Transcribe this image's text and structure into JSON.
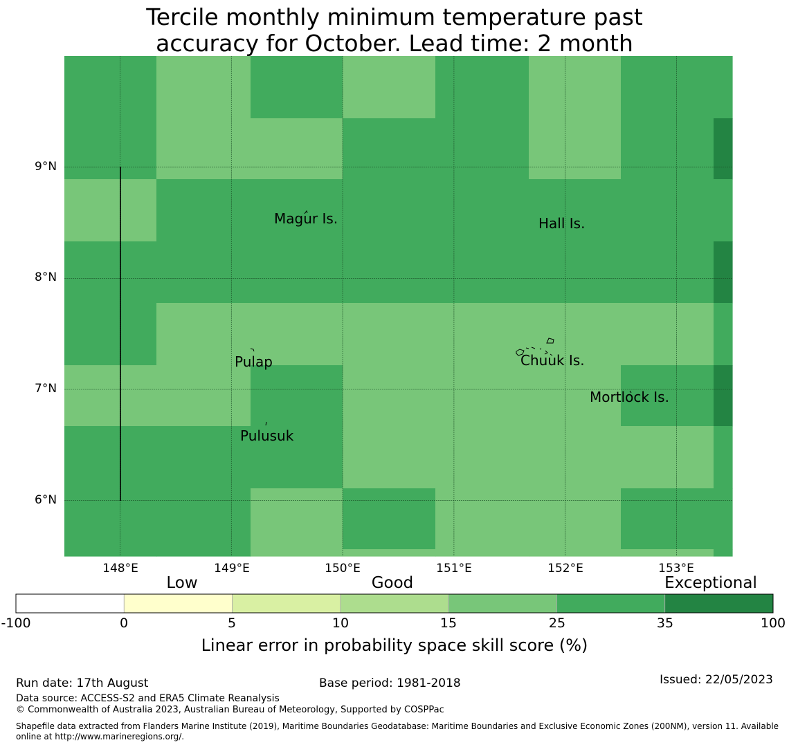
{
  "title_line1": "Tercile monthly minimum temperature past",
  "title_line2": "accuracy for October. Lead time: 2 month",
  "colors": {
    "c1": "#ffffff",
    "c2": "#ffffcc",
    "c3": "#d9f0a3",
    "c4": "#addd8e",
    "c5": "#78c679",
    "c6": "#41ab5d",
    "c7": "#238443"
  },
  "map": {
    "lat_labels": [
      "9°N",
      "8°N",
      "7°N",
      "6°N"
    ],
    "lon_labels": [
      "148°E",
      "149°E",
      "150°E",
      "151°E",
      "152°E",
      "153°E"
    ],
    "places": [
      {
        "name": "Magur Is."
      },
      {
        "name": "Hall Is."
      },
      {
        "name": "Pulap"
      },
      {
        "name": "Chuuk Is."
      },
      {
        "name": "Mortlock Is."
      },
      {
        "name": "Pulusuk"
      }
    ]
  },
  "chart_data": {
    "type": "heatmap",
    "title": "Tercile monthly minimum temperature past accuracy for October. Lead time: 2 month",
    "x_range": [
      147.5,
      153.5
    ],
    "y_range": [
      5.5,
      10.0
    ],
    "grid": true,
    "cell_lon_edges": [
      147.5,
      148.33,
      149.17,
      150.0,
      150.83,
      151.67,
      152.5,
      153.33,
      153.5
    ],
    "cell_lat_edges_north_to_south": [
      10.0,
      9.44,
      8.89,
      8.33,
      7.78,
      7.22,
      6.67,
      6.11,
      5.56,
      5.5
    ],
    "cell_classes": [
      [
        6,
        5,
        6,
        5,
        6,
        5,
        6,
        6
      ],
      [
        6,
        5,
        5,
        6,
        6,
        5,
        6,
        7
      ],
      [
        5,
        6,
        6,
        6,
        6,
        6,
        6,
        6
      ],
      [
        6,
        6,
        6,
        6,
        6,
        6,
        6,
        7
      ],
      [
        6,
        5,
        5,
        5,
        5,
        5,
        5,
        6
      ],
      [
        5,
        5,
        6,
        5,
        5,
        5,
        6,
        7
      ],
      [
        6,
        6,
        6,
        5,
        5,
        5,
        5,
        6
      ],
      [
        6,
        6,
        5,
        6,
        5,
        5,
        6,
        6
      ],
      [
        6,
        6,
        5,
        5,
        5,
        5,
        5,
        6
      ]
    ]
  },
  "colorbar": {
    "classes": [
      "Low",
      "Good",
      "Exceptional"
    ],
    "ticks": [
      "-100",
      "0",
      "5",
      "10",
      "15",
      "25",
      "35",
      "100"
    ],
    "caption": "Linear error in probability space skill score (%)"
  },
  "footer": {
    "run_date": "Run date: 17th August",
    "base_period": "Base period: 1981-2018",
    "issued": "Issued: 22/05/2023",
    "data_source": "Data source: ACCESS-S2 and ERA5 Climate Reanalysis",
    "copyright": "© Commonwealth of Australia 2023, Australian Bureau of Meteorology, Supported by COSPPac",
    "shapefile_line1": "Shapefile data extracted from Flanders Marine Institute (2019), Maritime Boundaries Geodatabase: Maritime Boundaries and Exclusive Economic Zones (200NM), version 11. Available",
    "shapefile_line2": "online at http://www.marineregions.org/."
  }
}
